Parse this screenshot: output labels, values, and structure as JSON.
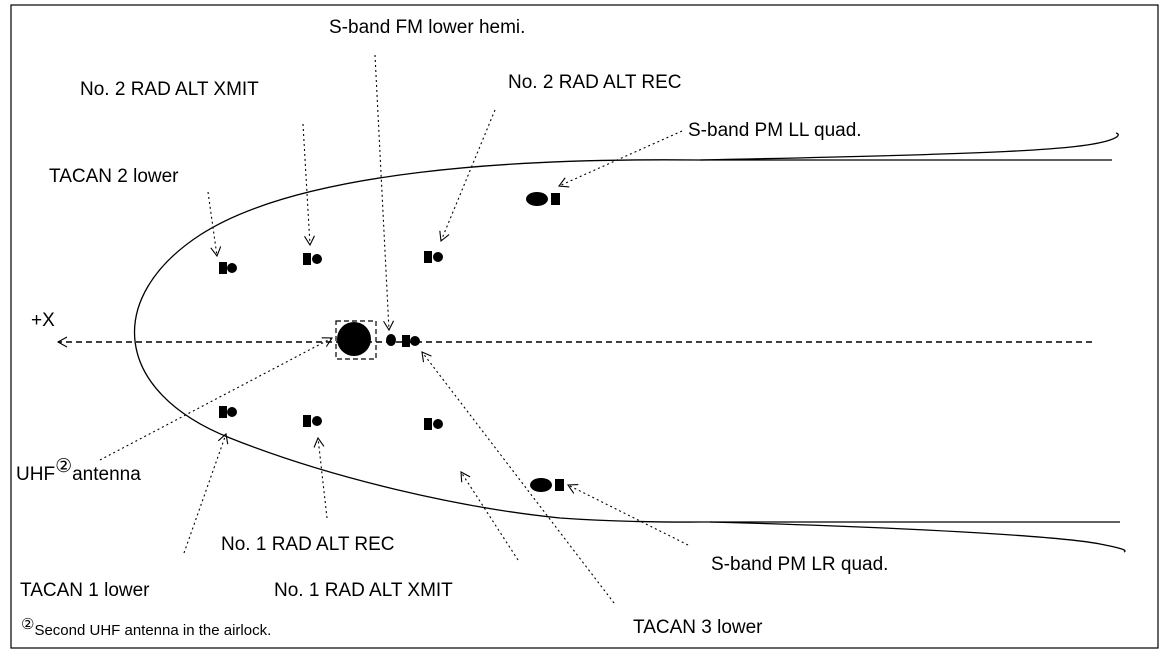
{
  "axis_label": "+X",
  "labels": {
    "s_band_fm_lower_hemi": "S-band FM lower hemi.",
    "no2_rad_alt_xmit": "No. 2 RAD ALT XMIT",
    "no2_rad_alt_rec": "No. 2 RAD ALT REC",
    "s_band_pm_ll_quad": "S-band PM LL quad.",
    "tacan2_lower": "TACAN 2 lower",
    "uhf_antenna_prefix": "UHF",
    "uhf_antenna_marker": "②",
    "uhf_antenna_suffix": "antenna",
    "tacan1_lower": "TACAN 1 lower",
    "no1_rad_alt_rec": "No. 1 RAD ALT REC",
    "no1_rad_alt_xmit": "No. 1 RAD ALT XMIT",
    "s_band_pm_lr_quad": "S-band PM LR quad.",
    "tacan3_lower": "TACAN 3 lower"
  },
  "footnote": {
    "marker": "②",
    "text": "Second UHF antenna in the airlock."
  }
}
